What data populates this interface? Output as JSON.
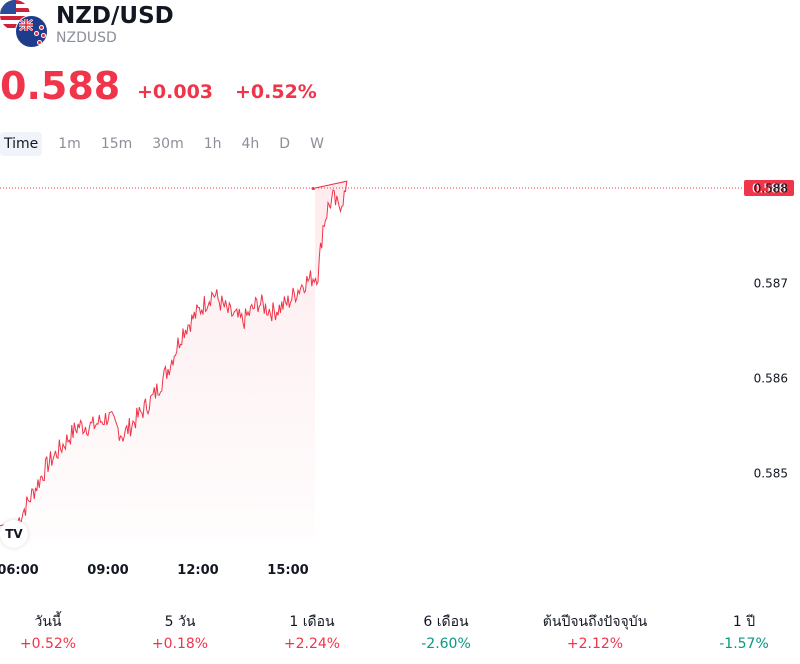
{
  "header": {
    "title": "NZD/USD",
    "ticker": "NZDUSD"
  },
  "quote": {
    "price": "0.588",
    "change_abs": "+0.003",
    "change_pct": "+0.52%"
  },
  "tabs": [
    "Time",
    "1m",
    "15m",
    "30m",
    "1h",
    "4h",
    "D",
    "W"
  ],
  "active_tab": "Time",
  "colors": {
    "up": "#f0344a",
    "down": "#089981",
    "line": "#f0344a",
    "text": "#131722",
    "muted": "#8c8f9a"
  },
  "icons": {
    "base_flag": "new-zealand-flag-icon",
    "quote_flag": "us-flag-icon",
    "brand": "tradingview-logo-icon"
  },
  "brand_logo_text": "TV",
  "chart_data": {
    "type": "line",
    "title": "",
    "xlabel": "",
    "ylabel": "",
    "x_ticks": [
      "06:00",
      "09:00",
      "12:00",
      "15:00"
    ],
    "y_ticks": [
      "0.588",
      "0.587",
      "0.586",
      "0.585"
    ],
    "ylim": [
      0.5843,
      0.5883
    ],
    "current_price_label": "0.588",
    "current_price_line": "dotted",
    "grid": false,
    "series": [
      {
        "x": [
          "06:00",
          "06:30",
          "07:00",
          "07:30",
          "08:00",
          "08:30",
          "09:00",
          "09:30",
          "10:00",
          "10:30",
          "11:00",
          "11:30",
          "12:00",
          "12:30",
          "13:00",
          "13:30",
          "14:00",
          "14:30",
          "15:00",
          "15:30",
          "16:00",
          "16:10",
          "16:20",
          "16:30",
          "16:40",
          "16:50",
          "17:00"
        ],
        "values": [
          0.5845,
          0.5848,
          0.5851,
          0.5853,
          0.5855,
          0.5855,
          0.5856,
          0.5854,
          0.5856,
          0.5858,
          0.5861,
          0.5865,
          0.5867,
          0.5869,
          0.5867,
          0.5866,
          0.5868,
          0.5867,
          0.5868,
          0.587,
          0.5871,
          0.5876,
          0.5878,
          0.5879,
          0.5878,
          0.5879,
          0.588
        ]
      }
    ]
  },
  "performance": [
    {
      "label": "วันนี้",
      "value": "+0.52%",
      "dir": "up"
    },
    {
      "label": "5 วัน",
      "value": "+0.18%",
      "dir": "up"
    },
    {
      "label": "1 เดือน",
      "value": "+2.24%",
      "dir": "up"
    },
    {
      "label": "6 เดือน",
      "value": "-2.60%",
      "dir": "down"
    },
    {
      "label": "ต้นปีจนถึงปัจจุบัน",
      "value": "+2.12%",
      "dir": "up"
    },
    {
      "label": "1 ปี",
      "value": "-1.57%",
      "dir": "down"
    }
  ]
}
